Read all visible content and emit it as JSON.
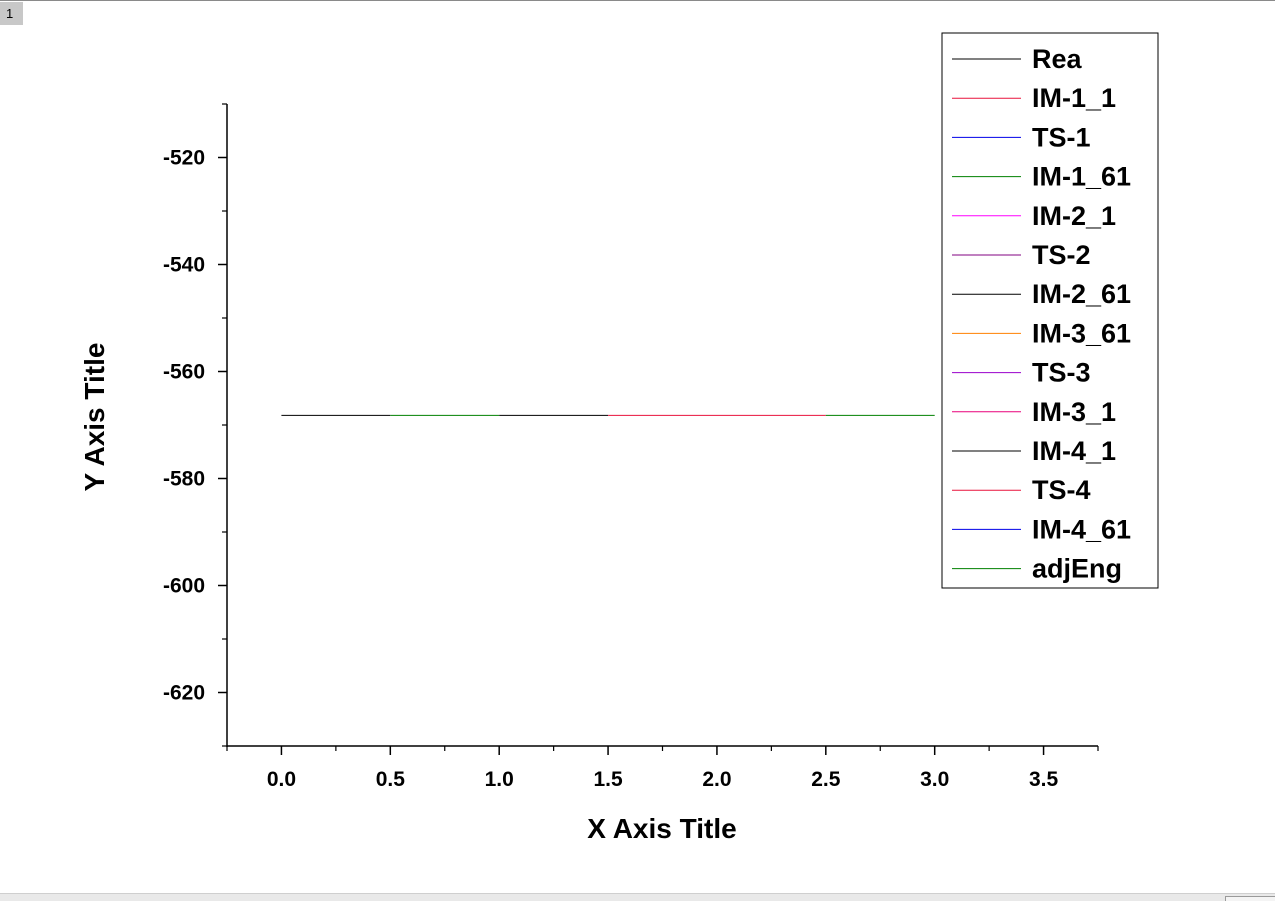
{
  "page_tab": "1",
  "chart_data": {
    "type": "line",
    "title": "",
    "xlabel": "X Axis Title",
    "ylabel": "Y Axis Title",
    "xlim": [
      -0.25,
      3.75
    ],
    "ylim": [
      -630,
      -510
    ],
    "x_major_ticks": [
      0.0,
      0.5,
      1.0,
      1.5,
      2.0,
      2.5,
      3.0,
      3.5
    ],
    "x_tick_labels": [
      "0.0",
      "0.5",
      "1.0",
      "1.5",
      "2.0",
      "2.5",
      "3.0",
      "3.5"
    ],
    "y_major_ticks": [
      -520,
      -540,
      -560,
      -580,
      -600,
      -620
    ],
    "y_tick_labels": [
      "-520",
      "-540",
      "-560",
      "-580",
      "-600",
      "-620"
    ],
    "grid": false,
    "legend_position": "top-right",
    "series": [
      {
        "name": "Rea",
        "color": "#000000",
        "points": [
          [
            0.0,
            -568.2
          ],
          [
            0.5,
            -568.2
          ]
        ]
      },
      {
        "name": "IM-1_1",
        "color": "#e8123c",
        "points": [
          [
            0.5,
            -568.2
          ],
          [
            0.5,
            -568.2
          ]
        ]
      },
      {
        "name": "TS-1",
        "color": "#0000e8",
        "points": [
          [
            0.5,
            -568.2
          ],
          [
            0.5,
            -568.2
          ]
        ]
      },
      {
        "name": "IM-1_61",
        "color": "#008000",
        "points": [
          [
            0.5,
            -568.2
          ],
          [
            1.0,
            -568.2
          ]
        ]
      },
      {
        "name": "IM-2_1",
        "color": "#ff00ff",
        "points": [
          [
            1.0,
            -568.2
          ],
          [
            1.0,
            -568.2
          ]
        ]
      },
      {
        "name": "TS-2",
        "color": "#800080",
        "points": [
          [
            1.0,
            -568.2
          ],
          [
            1.0,
            -568.2
          ]
        ]
      },
      {
        "name": "IM-2_61",
        "color": "#000000",
        "points": [
          [
            1.0,
            -568.2
          ],
          [
            1.5,
            -568.2
          ]
        ]
      },
      {
        "name": "IM-3_61",
        "color": "#ff8000",
        "points": [
          [
            1.5,
            -568.2
          ],
          [
            1.5,
            -568.2
          ]
        ]
      },
      {
        "name": "TS-3",
        "color": "#9900cc",
        "points": [
          [
            1.5,
            -568.2
          ],
          [
            1.5,
            -568.2
          ]
        ]
      },
      {
        "name": "IM-3_1",
        "color": "#e8007a",
        "points": [
          [
            1.5,
            -568.2
          ],
          [
            1.5,
            -568.2
          ]
        ]
      },
      {
        "name": "IM-4_1",
        "color": "#000000",
        "points": [
          [
            1.5,
            -568.2
          ],
          [
            1.5,
            -568.2
          ]
        ]
      },
      {
        "name": "TS-4",
        "color": "#e8123c",
        "points": [
          [
            1.5,
            -568.2
          ],
          [
            2.5,
            -568.2
          ]
        ]
      },
      {
        "name": "IM-4_61",
        "color": "#0000e8",
        "points": [
          [
            2.5,
            -568.2
          ],
          [
            2.5,
            -568.2
          ]
        ]
      },
      {
        "name": "adjEng",
        "color": "#008000",
        "points": [
          [
            2.5,
            -568.2
          ],
          [
            3.0,
            -568.2
          ]
        ]
      }
    ]
  }
}
